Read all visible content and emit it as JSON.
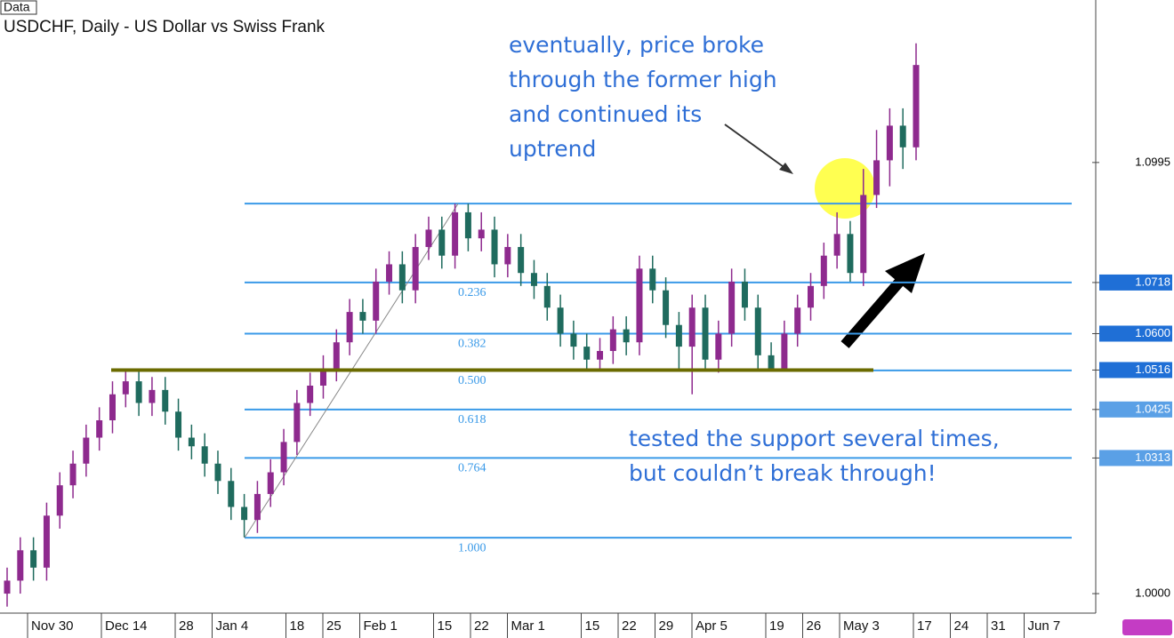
{
  "chart_data": {
    "type": "candlestick",
    "corner_label": "Data",
    "title": "USDCHF, Daily - US Dollar vs Swiss Frank",
    "up_color": "#8e2a8e",
    "down_color": "#1f6b5e",
    "open": [
      1.0,
      1.003,
      1.01,
      1.006,
      1.018,
      1.025,
      1.03,
      1.036,
      1.04,
      1.046,
      1.049,
      1.044,
      1.047,
      1.042,
      1.036,
      1.034,
      1.03,
      1.026,
      1.02,
      1.017,
      1.023,
      1.028,
      1.035,
      1.044,
      1.048,
      1.052,
      1.058,
      1.065,
      1.063,
      1.072,
      1.076,
      1.07,
      1.08,
      1.084,
      1.078,
      1.088,
      1.082,
      1.084,
      1.076,
      1.08,
      1.074,
      1.071,
      1.066,
      1.06,
      1.057,
      1.054,
      1.056,
      1.061,
      1.058,
      1.075,
      1.07,
      1.062,
      1.057,
      1.066,
      1.054,
      1.06,
      1.072,
      1.066,
      1.055,
      1.052,
      1.06,
      1.066,
      1.071,
      1.078,
      1.083,
      1.074,
      1.092,
      1.1,
      1.108,
      1.103
    ],
    "high": [
      1.006,
      1.013,
      1.013,
      1.021,
      1.028,
      1.033,
      1.039,
      1.043,
      1.049,
      1.052,
      1.052,
      1.05,
      1.05,
      1.045,
      1.039,
      1.037,
      1.033,
      1.029,
      1.023,
      1.026,
      1.031,
      1.038,
      1.047,
      1.051,
      1.055,
      1.061,
      1.068,
      1.068,
      1.075,
      1.079,
      1.079,
      1.083,
      1.087,
      1.087,
      1.09,
      1.09,
      1.088,
      1.087,
      1.083,
      1.083,
      1.077,
      1.074,
      1.069,
      1.063,
      1.06,
      1.059,
      1.064,
      1.064,
      1.078,
      1.078,
      1.073,
      1.065,
      1.069,
      1.069,
      1.063,
      1.075,
      1.075,
      1.069,
      1.058,
      1.063,
      1.069,
      1.074,
      1.081,
      1.088,
      1.086,
      1.098,
      1.107,
      1.112,
      1.112,
      1.127
    ],
    "low": [
      0.997,
      1.0,
      1.003,
      1.003,
      1.015,
      1.022,
      1.027,
      1.033,
      1.037,
      1.043,
      1.041,
      1.041,
      1.039,
      1.033,
      1.031,
      1.027,
      1.023,
      1.017,
      1.013,
      1.014,
      1.02,
      1.025,
      1.032,
      1.041,
      1.045,
      1.049,
      1.055,
      1.06,
      1.06,
      1.069,
      1.067,
      1.067,
      1.077,
      1.075,
      1.075,
      1.079,
      1.079,
      1.073,
      1.073,
      1.071,
      1.068,
      1.063,
      1.057,
      1.054,
      1.052,
      1.052,
      1.053,
      1.055,
      1.055,
      1.067,
      1.059,
      1.052,
      1.046,
      1.052,
      1.051,
      1.057,
      1.063,
      1.052,
      1.052,
      1.052,
      1.057,
      1.063,
      1.068,
      1.075,
      1.072,
      1.071,
      1.089,
      1.094,
      1.098,
      1.1
    ],
    "close": [
      1.003,
      1.01,
      1.006,
      1.018,
      1.025,
      1.03,
      1.036,
      1.04,
      1.046,
      1.049,
      1.044,
      1.047,
      1.042,
      1.036,
      1.034,
      1.03,
      1.026,
      1.02,
      1.017,
      1.023,
      1.028,
      1.035,
      1.044,
      1.048,
      1.052,
      1.058,
      1.065,
      1.063,
      1.072,
      1.076,
      1.07,
      1.08,
      1.084,
      1.078,
      1.088,
      1.082,
      1.084,
      1.076,
      1.08,
      1.074,
      1.071,
      1.066,
      1.06,
      1.057,
      1.054,
      1.056,
      1.061,
      1.058,
      1.075,
      1.07,
      1.062,
      1.057,
      1.066,
      1.054,
      1.06,
      1.072,
      1.066,
      1.055,
      1.052,
      1.06,
      1.066,
      1.071,
      1.078,
      1.083,
      1.074,
      1.092,
      1.1,
      1.108,
      1.103,
      1.122
    ],
    "categories": [
      "Nov 30",
      null,
      "Dec 14",
      null,
      "28",
      "Jan 4",
      null,
      "18",
      "25",
      "Feb 1",
      null,
      "15",
      "22",
      "Mar 1",
      null,
      "15",
      "22",
      "29",
      "Apr 5",
      null,
      "19",
      "26",
      "May 3",
      null,
      "17",
      "24",
      "31",
      "Jun 7"
    ],
    "ylim": [
      0.9955,
      1.137
    ],
    "yticks": [
      1.0995,
      1.0718,
      {
        "value": 1.06,
        "label": "1.0600"
      },
      1.0516,
      1.0425,
      1.0313,
      {
        "value": 1.0,
        "label": "1.0000"
      }
    ],
    "fibonacci": {
      "color": "#3a9ae8",
      "levels": [
        1.09,
        1.0718,
        1.06,
        1.0515,
        1.0425,
        1.0313,
        1.0129
      ],
      "labels": [
        null,
        "0.236",
        "0.382",
        "0.500",
        "0.618",
        "0.764",
        "1.000"
      ]
    },
    "support": {
      "value": 1.0516,
      "color": "#6b6b00"
    },
    "annotations": [
      {
        "lines": [
          "eventually, price broke",
          "through the former high",
          "and continued its",
          "uptrend"
        ]
      },
      {
        "lines": [
          "tested the support several times,",
          "but couldn’t break through!"
        ]
      }
    ]
  }
}
